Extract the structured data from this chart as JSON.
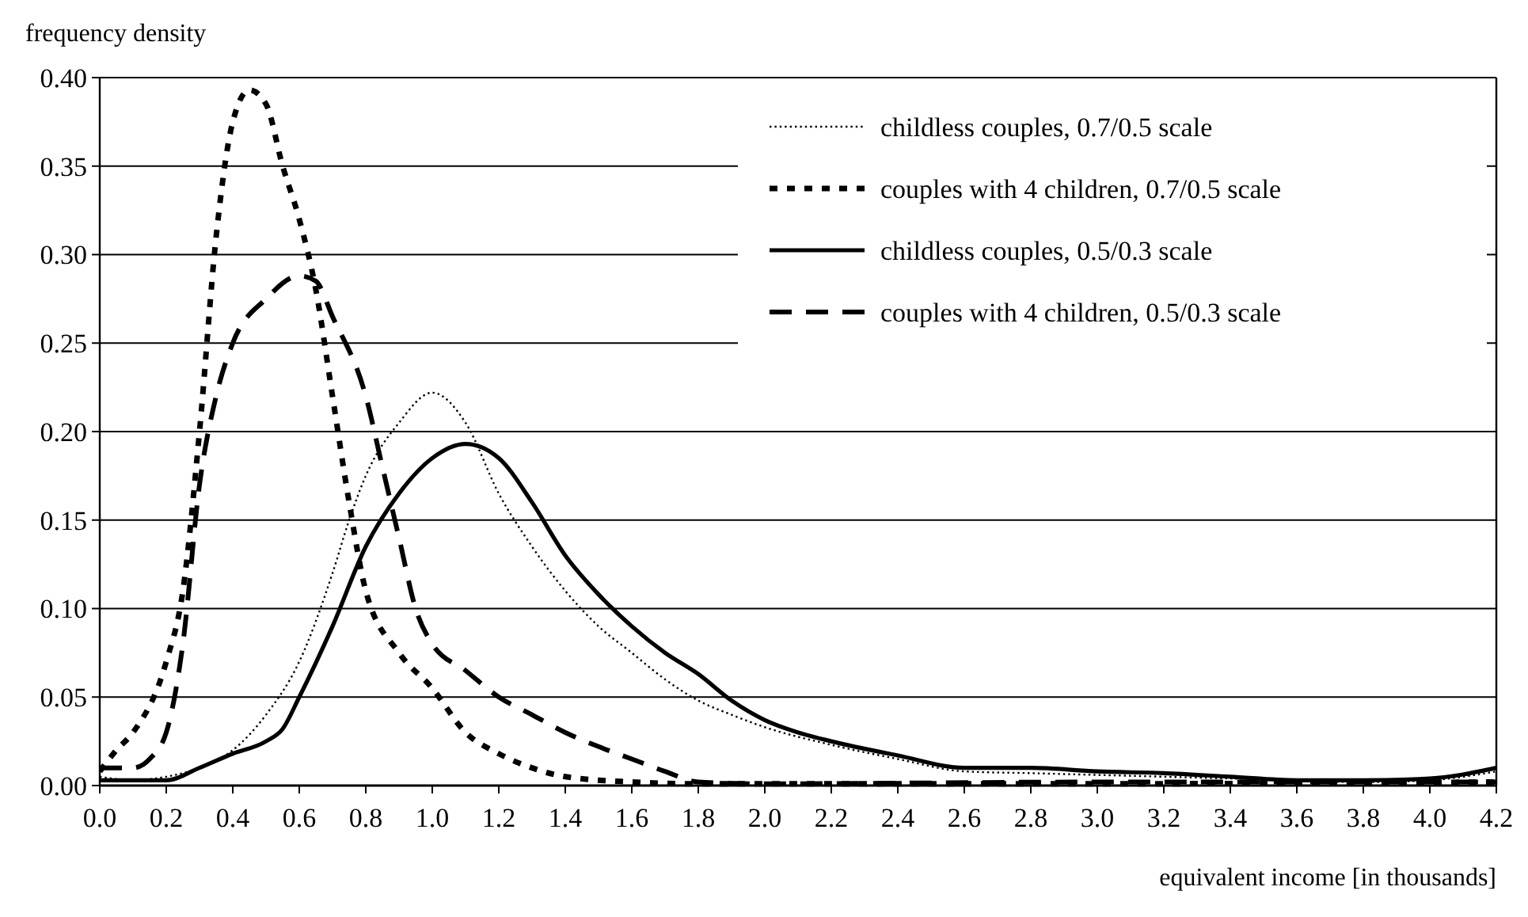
{
  "chart_data": {
    "type": "line",
    "xlabel": "equivalent income [in thousands]",
    "ylabel": "frequency density",
    "xlim": [
      0,
      4.2
    ],
    "ylim": [
      0,
      0.4
    ],
    "xticks": [
      {
        "value": 0,
        "label": "0.0"
      },
      {
        "value": 0.2,
        "label": "0.2"
      },
      {
        "value": 0.4,
        "label": "0.4"
      },
      {
        "value": 0.6,
        "label": "0.6"
      },
      {
        "value": 0.8,
        "label": "0.8"
      },
      {
        "value": 1,
        "label": "1.0"
      },
      {
        "value": 1.2,
        "label": "1.2"
      },
      {
        "value": 1.4,
        "label": "1.4"
      },
      {
        "value": 1.6,
        "label": "1.6"
      },
      {
        "value": 1.8,
        "label": "1.8"
      },
      {
        "value": 2,
        "label": "2.0"
      },
      {
        "value": 2.2,
        "label": "2.2"
      },
      {
        "value": 2.4,
        "label": "2.4"
      },
      {
        "value": 2.6,
        "label": "2.6"
      },
      {
        "value": 2.8,
        "label": "2.8"
      },
      {
        "value": 3,
        "label": "3.0"
      },
      {
        "value": 3.2,
        "label": "3.2"
      },
      {
        "value": 3.4,
        "label": "3.4"
      },
      {
        "value": 3.6,
        "label": "3.6"
      },
      {
        "value": 3.8,
        "label": "3.8"
      },
      {
        "value": 4,
        "label": "4.0"
      },
      {
        "value": 4.2,
        "label": "4.2"
      }
    ],
    "yticks": [
      {
        "value": 0,
        "label": "0.00"
      },
      {
        "value": 0.05,
        "label": "0.05"
      },
      {
        "value": 0.1,
        "label": "0.10"
      },
      {
        "value": 0.15,
        "label": "0.15"
      },
      {
        "value": 0.2,
        "label": "0.20"
      },
      {
        "value": 0.25,
        "label": "0.25"
      },
      {
        "value": 0.3,
        "label": "0.30"
      },
      {
        "value": 0.35,
        "label": "0.35"
      },
      {
        "value": 0.4,
        "label": "0.40"
      }
    ],
    "grid": "y",
    "legend": "top right",
    "marker": "none",
    "series": [
      {
        "name": "childless couples, 0.7/0.5 scale",
        "color": "#000000",
        "line_style": "dotted",
        "x": [
          0,
          0.1,
          0.2,
          0.3,
          0.4,
          0.5,
          0.6,
          0.7,
          0.75,
          0.8,
          0.9,
          1.0,
          1.1,
          1.2,
          1.3,
          1.4,
          1.5,
          1.6,
          1.7,
          1.8,
          1.9,
          2.0,
          2.2,
          2.4,
          2.6,
          2.8,
          3.0,
          3.4,
          3.8,
          4.0,
          4.2
        ],
        "values": [
          0.005,
          0.003,
          0.005,
          0.01,
          0.02,
          0.04,
          0.07,
          0.12,
          0.15,
          0.175,
          0.205,
          0.222,
          0.205,
          0.165,
          0.135,
          0.11,
          0.09,
          0.075,
          0.06,
          0.048,
          0.04,
          0.033,
          0.023,
          0.015,
          0.008,
          0.007,
          0.006,
          0.004,
          0.002,
          0.003,
          0.008
        ]
      },
      {
        "name": "couples with 4 children, 0.7/0.5 scale",
        "color": "#000000",
        "line_style": "dashed",
        "x": [
          0,
          0.05,
          0.1,
          0.2,
          0.25,
          0.3,
          0.35,
          0.4,
          0.45,
          0.5,
          0.55,
          0.6,
          0.65,
          0.7,
          0.75,
          0.8,
          0.9,
          1.0,
          1.1,
          1.2,
          1.3,
          1.4,
          1.6,
          1.8,
          2.0,
          3.0,
          4.2
        ],
        "values": [
          0.008,
          0.02,
          0.03,
          0.07,
          0.11,
          0.2,
          0.31,
          0.375,
          0.393,
          0.385,
          0.35,
          0.32,
          0.28,
          0.22,
          0.16,
          0.11,
          0.075,
          0.055,
          0.03,
          0.018,
          0.01,
          0.005,
          0.002,
          0.001,
          0.001,
          0.001,
          0.002
        ]
      },
      {
        "name": "childless couples, 0.5/0.3 scale",
        "color": "#000000",
        "line_style": "solid",
        "x": [
          0,
          0.2,
          0.3,
          0.4,
          0.5,
          0.55,
          0.6,
          0.7,
          0.8,
          0.9,
          1.0,
          1.1,
          1.2,
          1.3,
          1.4,
          1.5,
          1.6,
          1.7,
          1.8,
          1.9,
          2.0,
          2.1,
          2.2,
          2.4,
          2.6,
          2.8,
          3.0,
          3.2,
          3.4,
          3.6,
          3.8,
          4.0,
          4.2
        ],
        "values": [
          0.003,
          0.003,
          0.01,
          0.018,
          0.025,
          0.032,
          0.05,
          0.09,
          0.135,
          0.165,
          0.185,
          0.193,
          0.185,
          0.16,
          0.13,
          0.108,
          0.09,
          0.075,
          0.063,
          0.048,
          0.037,
          0.03,
          0.025,
          0.017,
          0.01,
          0.01,
          0.008,
          0.007,
          0.005,
          0.003,
          0.003,
          0.004,
          0.01
        ]
      },
      {
        "name": "couples with 4 children, 0.5/0.3 scale",
        "color": "#000000",
        "line_style": "dashed",
        "x": [
          0,
          0.1,
          0.15,
          0.2,
          0.25,
          0.3,
          0.35,
          0.4,
          0.5,
          0.6,
          0.65,
          0.7,
          0.8,
          0.85,
          0.9,
          0.95,
          1.0,
          1.1,
          1.2,
          1.3,
          1.4,
          1.5,
          1.6,
          1.7,
          1.8,
          2.0,
          3.0,
          4.2
        ],
        "values": [
          0.01,
          0.01,
          0.015,
          0.03,
          0.08,
          0.17,
          0.22,
          0.25,
          0.275,
          0.288,
          0.285,
          0.265,
          0.22,
          0.18,
          0.14,
          0.1,
          0.08,
          0.065,
          0.05,
          0.04,
          0.03,
          0.022,
          0.015,
          0.008,
          0.002,
          0.001,
          0.002,
          0.002
        ]
      }
    ]
  }
}
